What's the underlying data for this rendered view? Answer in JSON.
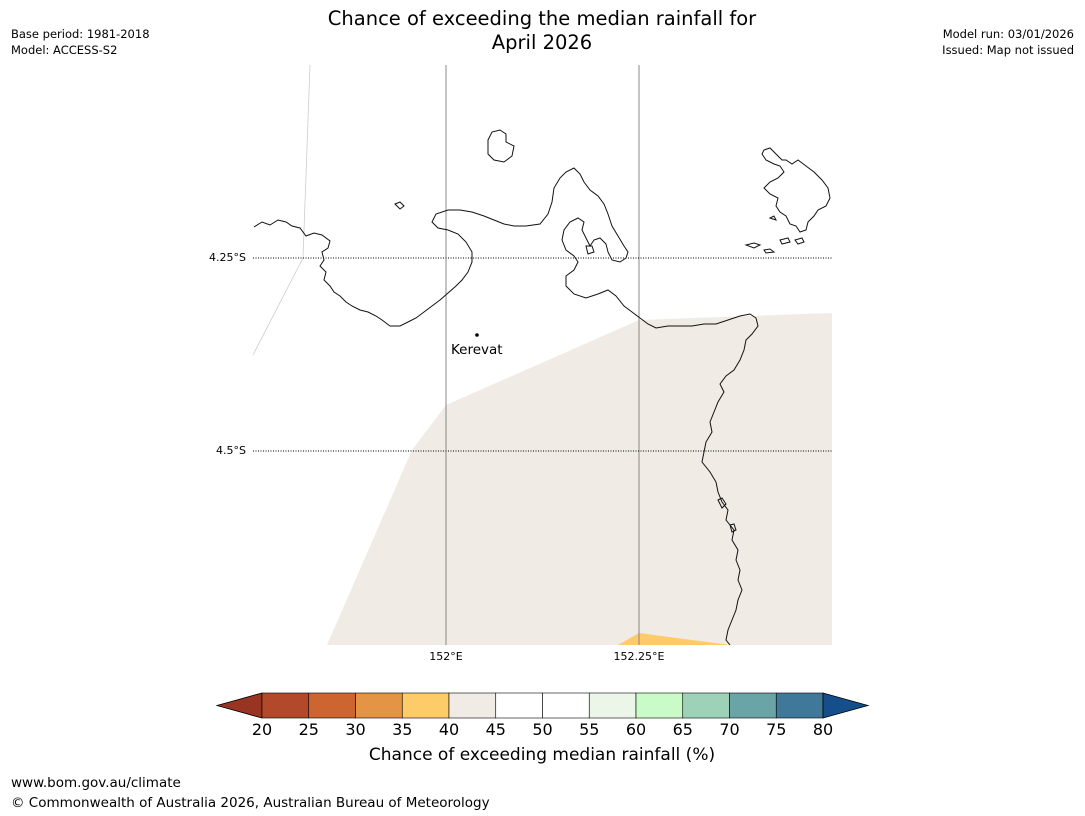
{
  "header": {
    "base_period": "Base period: 1981-2018",
    "model": "Model: ACCESS-S2",
    "model_run": "Model run: 03/01/2026",
    "issued": "Issued: Map not issued",
    "title_line1": "Chance of exceeding the median rainfall for",
    "title_line2": "April 2026"
  },
  "map": {
    "latitude_labels": [
      "4.25°S",
      "4.5°S"
    ],
    "longitude_labels": [
      "152°E",
      "152.25°E"
    ],
    "places": [
      {
        "name": "Kerevat"
      }
    ],
    "fill_colors": {
      "band_40_45": "#f0ebe5",
      "band_35_40": "#fdcc69"
    }
  },
  "legend": {
    "title": "Chance of exceeding median rainfall (%)",
    "ticks": [
      "20",
      "25",
      "30",
      "35",
      "40",
      "45",
      "50",
      "55",
      "60",
      "65",
      "70",
      "75",
      "80"
    ],
    "colors": [
      "#983422",
      "#b2492a",
      "#cc6530",
      "#e39545",
      "#fdcc69",
      "#f0ebe5",
      "#ffffff",
      "#ffffff",
      "#ebf6e9",
      "#c8fbc8",
      "#9ed2b8",
      "#6ba4a7",
      "#3f7898",
      "#144f8c"
    ]
  },
  "footer": {
    "url": "www.bom.gov.au/climate",
    "copyright": "© Commonwealth of Australia 2026, Australian Bureau of Meteorology"
  }
}
